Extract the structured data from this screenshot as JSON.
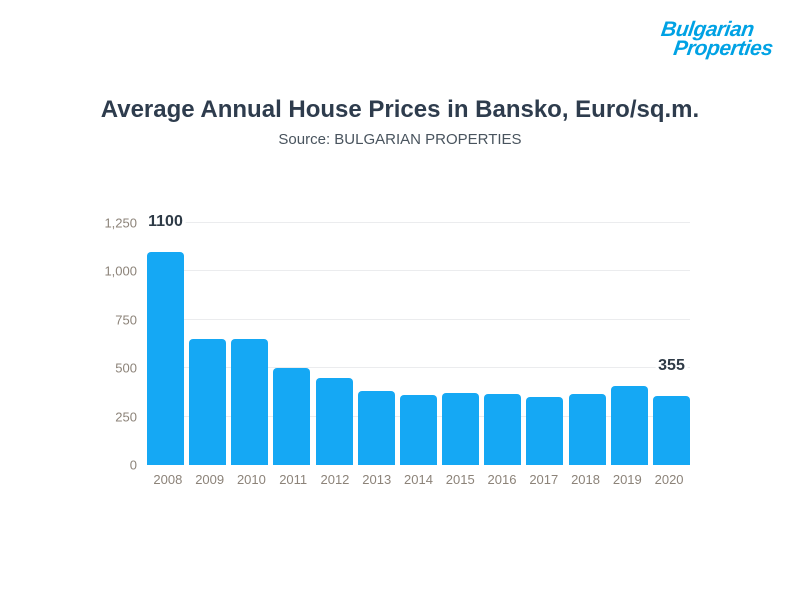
{
  "logo": {
    "line1": "Bulgarian",
    "line2": "Properties",
    "color": "#00a2e4"
  },
  "header": {
    "title": "Average Annual House Prices in Bansko, Euro/sq.m.",
    "subtitle": "Source: BULGARIAN PROPERTIES"
  },
  "colors": {
    "title": "#2e3c4d",
    "subtitle": "#49545e",
    "axis_labels": "#8c8379",
    "gridlines": "#ebecee",
    "bars": "#15a8f4",
    "annotations": "#2e3a46"
  },
  "chart_data": {
    "type": "bar",
    "title": "Average Annual House Prices in Bansko, Euro/sq.m.",
    "subtitle": "Source: BULGARIAN PROPERTIES",
    "xlabel": "",
    "ylabel": "",
    "categories": [
      "2008",
      "2009",
      "2010",
      "2011",
      "2012",
      "2013",
      "2014",
      "2015",
      "2016",
      "2017",
      "2018",
      "2019",
      "2020"
    ],
    "values": [
      1100,
      650,
      650,
      500,
      450,
      380,
      360,
      370,
      365,
      350,
      365,
      410,
      355
    ],
    "value_labels": {
      "2008": "1100",
      "2020": "355"
    },
    "ylim": [
      0,
      1250
    ],
    "yticks": [
      0,
      250,
      500,
      750,
      1000,
      1250
    ],
    "ytick_labels": [
      "0",
      "250",
      "500",
      "750",
      "1,000",
      "1,250"
    ],
    "grid": "horizontal",
    "legend": "none"
  }
}
